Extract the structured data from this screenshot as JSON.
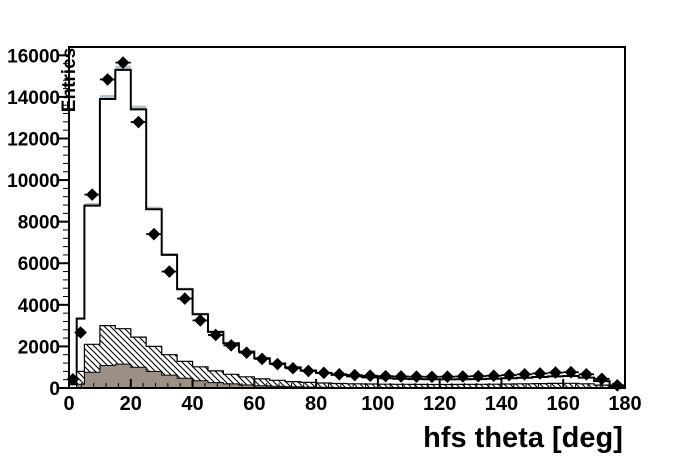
{
  "chart_data": {
    "type": "bar",
    "subtype": "overlaid-histograms",
    "title": "",
    "xlabel": "hfs theta [deg]",
    "ylabel": "Entries",
    "x_range": [
      0,
      180
    ],
    "y_range": [
      0,
      16400
    ],
    "x_tick_labels": [
      "0",
      "20",
      "40",
      "60",
      "80",
      "100",
      "120",
      "140",
      "160",
      "180"
    ],
    "x_major_ticks": [
      0,
      20,
      40,
      60,
      80,
      100,
      120,
      140,
      160,
      180
    ],
    "x_minor_step": 4,
    "y_tick_labels": [
      "0",
      "2000",
      "4000",
      "6000",
      "8000",
      "10000",
      "12000",
      "14000",
      "16000"
    ],
    "y_major_ticks": [
      0,
      2000,
      4000,
      6000,
      8000,
      10000,
      12000,
      14000,
      16000
    ],
    "y_minor_step": 400,
    "grid": false,
    "legend": "none",
    "bin_edges": [
      0,
      2.5,
      5,
      10,
      15,
      20,
      25,
      30,
      35,
      40,
      45,
      50,
      55,
      60,
      65,
      70,
      75,
      80,
      85,
      90,
      95,
      100,
      105,
      110,
      115,
      120,
      125,
      130,
      135,
      140,
      145,
      150,
      155,
      160,
      165,
      170,
      175,
      180
    ],
    "series": [
      {
        "name": "mc-uncertainty-band",
        "style": "fill",
        "color": "#b7c2cb",
        "values": [
          202,
          3400,
          8895,
          14090,
          15505,
          13580,
          8725,
          6495,
          4825,
          3615,
          2755,
          2195,
          1790,
          1465,
          1215,
          1020,
          870,
          750,
          660,
          590,
          535,
          495,
          470,
          455,
          445,
          440,
          445,
          455,
          470,
          490,
          520,
          555,
          590,
          605,
          525,
          355,
          110
        ]
      },
      {
        "name": "mc-total",
        "style": "white-fill-black-outline",
        "color": "#000000",
        "fill": "#ffffff",
        "values": [
          180,
          3340,
          8770,
          13900,
          15300,
          13400,
          8600,
          6400,
          4750,
          3550,
          2700,
          2150,
          1750,
          1430,
          1180,
          990,
          840,
          720,
          630,
          560,
          510,
          470,
          445,
          430,
          420,
          415,
          420,
          430,
          445,
          465,
          495,
          530,
          560,
          575,
          500,
          330,
          90
        ]
      },
      {
        "name": "mc-hatched",
        "style": "hatch-diagonal",
        "color": "#000000",
        "values": [
          0,
          800,
          2100,
          3000,
          2850,
          2450,
          2000,
          1600,
          1280,
          1020,
          820,
          660,
          540,
          440,
          370,
          310,
          270,
          240,
          215,
          200,
          190,
          182,
          176,
          172,
          170,
          170,
          172,
          176,
          182,
          190,
          200,
          212,
          222,
          228,
          200,
          140,
          45
        ]
      },
      {
        "name": "mc-solid-gray",
        "style": "fill-black-outline",
        "color": "#9c9084",
        "values": [
          0,
          180,
          760,
          1080,
          1150,
          1000,
          800,
          620,
          470,
          350,
          260,
          195,
          145,
          110,
          82,
          60,
          45,
          32,
          22,
          14,
          8,
          5,
          3,
          2,
          0,
          0,
          0,
          0,
          0,
          0,
          0,
          0,
          0,
          0,
          0,
          0,
          0
        ]
      }
    ],
    "data_points": {
      "name": "data",
      "marker": "diamond",
      "color": "#000000",
      "x": [
        1.25,
        3.75,
        7.5,
        12.5,
        17.5,
        22.5,
        27.5,
        32.5,
        37.5,
        42.5,
        47.5,
        52.5,
        57.5,
        62.5,
        67.5,
        72.5,
        77.5,
        82.5,
        87.5,
        92.5,
        97.5,
        102.5,
        107.5,
        112.5,
        117.5,
        122.5,
        127.5,
        132.5,
        137.5,
        142.5,
        147.5,
        152.5,
        157.5,
        162.5,
        167.5,
        172.5,
        177.5
      ],
      "y": [
        420,
        2670,
        9300,
        14840,
        15650,
        12790,
        7400,
        5600,
        4300,
        3250,
        2550,
        2050,
        1700,
        1400,
        1150,
        950,
        820,
        730,
        660,
        620,
        590,
        570,
        555,
        545,
        540,
        545,
        555,
        570,
        590,
        620,
        660,
        700,
        740,
        760,
        660,
        440,
        130
      ],
      "x_half_width": [
        1.25,
        1.25,
        2.5,
        2.5,
        2.5,
        2.5,
        2.5,
        2.5,
        2.5,
        2.5,
        2.5,
        2.5,
        2.5,
        2.5,
        2.5,
        2.5,
        2.5,
        2.5,
        2.5,
        2.5,
        2.5,
        2.5,
        2.5,
        2.5,
        2.5,
        2.5,
        2.5,
        2.5,
        2.5,
        2.5,
        2.5,
        2.5,
        2.5,
        2.5,
        2.5,
        2.5,
        2.5
      ]
    },
    "colors": {
      "frame": "#000000",
      "background": "#ffffff",
      "band": "#b7c2cb",
      "gray_fill": "#9c9084",
      "marker": "#000000"
    }
  }
}
